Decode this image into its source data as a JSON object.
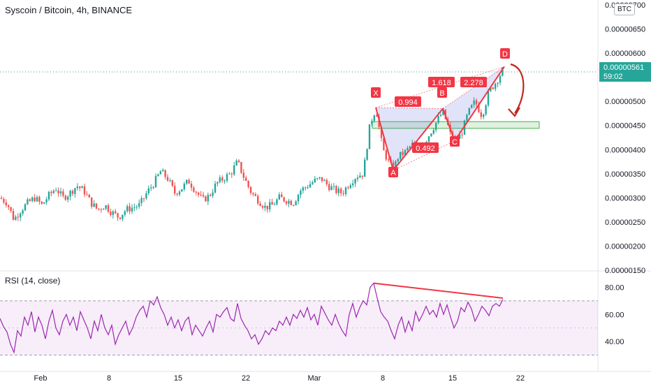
{
  "header": {
    "title": "Syscoin / Bitcoin, 4h, BINANCE",
    "currency_badge": "BTC"
  },
  "price_tag": {
    "value": "0.00000561",
    "countdown": "59:02",
    "color": "#26a69a"
  },
  "rsi_panel": {
    "title": "RSI (14, close)",
    "y_ticks": [
      "80.00",
      "60.00",
      "40.00"
    ],
    "upper_band": 70,
    "lower_band": 30,
    "line_color": "#9c27b0"
  },
  "x_axis_labels": [
    "Feb",
    "8",
    "15",
    "22",
    "Mar",
    "8",
    "15",
    "22"
  ],
  "pattern": {
    "points": [
      "X",
      "A",
      "B",
      "C",
      "D"
    ],
    "ratios": [
      "0.994",
      "0.492",
      "1.618",
      "2.278"
    ],
    "color": "#f23645"
  },
  "chart_data": {
    "type": "candlestick",
    "symbol": "Syscoin / Bitcoin",
    "interval": "4h",
    "exchange": "BINANCE",
    "y_ticks": [
      "0.00000700",
      "0.00000650",
      "0.00000600",
      "0.00000550",
      "0.00000500",
      "0.00000450",
      "0.00000400",
      "0.00000350",
      "0.00000300",
      "0.00000250",
      "0.00000200",
      "0.00000150"
    ],
    "last_price": 5.61e-06,
    "price_series_approx": [
      [
        0,
        3e-06
      ],
      [
        10,
        2.9e-06
      ],
      [
        20,
        2.55e-06
      ],
      [
        30,
        2.75e-06
      ],
      [
        40,
        2.9e-06
      ],
      [
        50,
        3e-06
      ],
      [
        60,
        2.85e-06
      ],
      [
        70,
        3.05e-06
      ],
      [
        80,
        3.2e-06
      ],
      [
        90,
        3e-06
      ],
      [
        100,
        3.1e-06
      ],
      [
        110,
        3.25e-06
      ],
      [
        120,
        3.15e-06
      ],
      [
        130,
        2.9e-06
      ],
      [
        140,
        2.75e-06
      ],
      [
        150,
        2.85e-06
      ],
      [
        160,
        2.7e-06
      ],
      [
        170,
        2.6e-06
      ],
      [
        180,
        2.75e-06
      ],
      [
        190,
        2.8e-06
      ],
      [
        200,
        2.85e-06
      ],
      [
        210,
        3.1e-06
      ],
      [
        220,
        3.3e-06
      ],
      [
        230,
        3.55e-06
      ],
      [
        240,
        3.4e-06
      ],
      [
        250,
        3.1e-06
      ],
      [
        260,
        3.2e-06
      ],
      [
        270,
        3.35e-06
      ],
      [
        280,
        3.15e-06
      ],
      [
        290,
        2.95e-06
      ],
      [
        300,
        3.05e-06
      ],
      [
        310,
        3.3e-06
      ],
      [
        320,
        3.4e-06
      ],
      [
        330,
        3.5e-06
      ],
      [
        340,
        3.75e-06
      ],
      [
        350,
        3.4e-06
      ],
      [
        360,
        3.1e-06
      ],
      [
        370,
        2.95e-06
      ],
      [
        380,
        2.8e-06
      ],
      [
        390,
        2.85e-06
      ],
      [
        400,
        3e-06
      ],
      [
        410,
        2.95e-06
      ],
      [
        420,
        2.9e-06
      ],
      [
        430,
        3.15e-06
      ],
      [
        440,
        3.25e-06
      ],
      [
        450,
        3.35e-06
      ],
      [
        460,
        3.4e-06
      ],
      [
        470,
        3.25e-06
      ],
      [
        480,
        3.15e-06
      ],
      [
        490,
        3.1e-06
      ],
      [
        500,
        3.3e-06
      ],
      [
        510,
        3.45e-06
      ],
      [
        520,
        3.5e-06
      ],
      [
        530,
        4.55e-06
      ],
      [
        538,
        4.85e-06
      ],
      [
        548,
        4e-06
      ],
      [
        558,
        3.7e-06
      ],
      [
        563,
        3.58e-06
      ],
      [
        570,
        3.85e-06
      ],
      [
        580,
        3.95e-06
      ],
      [
        590,
        4.1e-06
      ],
      [
        600,
        4e-06
      ],
      [
        610,
        4.2e-06
      ],
      [
        620,
        4.45e-06
      ],
      [
        630,
        4.7e-06
      ],
      [
        634,
        4.78e-06
      ],
      [
        640,
        4.55e-06
      ],
      [
        645,
        4.3e-06
      ],
      [
        650,
        4.18e-06
      ],
      [
        660,
        4.3e-06
      ],
      [
        670,
        4.75e-06
      ],
      [
        680,
        5e-06
      ],
      [
        690,
        4.7e-06
      ],
      [
        700,
        5.2e-06
      ],
      [
        710,
        5.4e-06
      ],
      [
        720,
        5.65e-06
      ],
      [
        722,
        5.61e-06
      ]
    ],
    "harmonic_pattern": {
      "X": 4.87e-06,
      "A": 3.57e-06,
      "B": 4.85e-06,
      "C": 4.18e-06,
      "D": 5.72e-06,
      "ratios": {
        "XB": 0.994,
        "AC": 0.492,
        "BD": 1.618,
        "XD": 2.278
      }
    },
    "target_zone": [
      4.44e-06,
      4.58e-06
    ],
    "rsi": {
      "period": 14,
      "source": "close",
      "bands": [
        30,
        70
      ],
      "values_approx": [
        [
          0,
          57
        ],
        [
          5,
          51
        ],
        [
          10,
          47
        ],
        [
          15,
          38
        ],
        [
          20,
          32
        ],
        [
          25,
          48
        ],
        [
          30,
          44
        ],
        [
          35,
          58
        ],
        [
          40,
          52
        ],
        [
          45,
          62
        ],
        [
          50,
          47
        ],
        [
          55,
          58
        ],
        [
          60,
          52
        ],
        [
          65,
          42
        ],
        [
          70,
          55
        ],
        [
          75,
          63
        ],
        [
          80,
          50
        ],
        [
          85,
          45
        ],
        [
          90,
          55
        ],
        [
          95,
          60
        ],
        [
          100,
          52
        ],
        [
          105,
          58
        ],
        [
          110,
          48
        ],
        [
          115,
          62
        ],
        [
          120,
          56
        ],
        [
          125,
          50
        ],
        [
          130,
          42
        ],
        [
          135,
          55
        ],
        [
          140,
          48
        ],
        [
          145,
          60
        ],
        [
          150,
          50
        ],
        [
          155,
          45
        ],
        [
          160,
          52
        ],
        [
          165,
          38
        ],
        [
          170,
          45
        ],
        [
          175,
          50
        ],
        [
          180,
          55
        ],
        [
          185,
          45
        ],
        [
          190,
          50
        ],
        [
          195,
          58
        ],
        [
          200,
          63
        ],
        [
          205,
          66
        ],
        [
          210,
          58
        ],
        [
          215,
          70
        ],
        [
          220,
          67
        ],
        [
          225,
          73
        ],
        [
          230,
          65
        ],
        [
          235,
          60
        ],
        [
          240,
          52
        ],
        [
          245,
          58
        ],
        [
          250,
          50
        ],
        [
          255,
          56
        ],
        [
          260,
          48
        ],
        [
          265,
          55
        ],
        [
          270,
          58
        ],
        [
          275,
          45
        ],
        [
          280,
          52
        ],
        [
          285,
          48
        ],
        [
          290,
          44
        ],
        [
          295,
          50
        ],
        [
          300,
          55
        ],
        [
          305,
          47
        ],
        [
          310,
          60
        ],
        [
          315,
          58
        ],
        [
          320,
          62
        ],
        [
          325,
          65
        ],
        [
          330,
          57
        ],
        [
          335,
          55
        ],
        [
          340,
          68
        ],
        [
          345,
          57
        ],
        [
          350,
          52
        ],
        [
          355,
          48
        ],
        [
          360,
          42
        ],
        [
          365,
          45
        ],
        [
          370,
          38
        ],
        [
          375,
          42
        ],
        [
          380,
          48
        ],
        [
          385,
          45
        ],
        [
          390,
          50
        ],
        [
          395,
          48
        ],
        [
          400,
          55
        ],
        [
          405,
          52
        ],
        [
          410,
          58
        ],
        [
          415,
          52
        ],
        [
          420,
          60
        ],
        [
          425,
          57
        ],
        [
          430,
          63
        ],
        [
          435,
          58
        ],
        [
          440,
          65
        ],
        [
          445,
          56
        ],
        [
          450,
          60
        ],
        [
          455,
          52
        ],
        [
          460,
          66
        ],
        [
          465,
          61
        ],
        [
          470,
          56
        ],
        [
          475,
          52
        ],
        [
          480,
          60
        ],
        [
          485,
          53
        ],
        [
          490,
          48
        ],
        [
          495,
          44
        ],
        [
          500,
          60
        ],
        [
          505,
          68
        ],
        [
          510,
          58
        ],
        [
          515,
          65
        ],
        [
          520,
          70
        ],
        [
          525,
          67
        ],
        [
          530,
          80
        ],
        [
          535,
          83
        ],
        [
          540,
          72
        ],
        [
          545,
          62
        ],
        [
          550,
          58
        ],
        [
          555,
          55
        ],
        [
          560,
          48
        ],
        [
          565,
          42
        ],
        [
          570,
          52
        ],
        [
          575,
          58
        ],
        [
          580,
          47
        ],
        [
          585,
          55
        ],
        [
          590,
          48
        ],
        [
          595,
          62
        ],
        [
          600,
          55
        ],
        [
          605,
          60
        ],
        [
          610,
          66
        ],
        [
          615,
          60
        ],
        [
          620,
          63
        ],
        [
          625,
          58
        ],
        [
          630,
          68
        ],
        [
          635,
          60
        ],
        [
          640,
          67
        ],
        [
          645,
          58
        ],
        [
          650,
          50
        ],
        [
          655,
          55
        ],
        [
          660,
          65
        ],
        [
          665,
          62
        ],
        [
          670,
          69
        ],
        [
          675,
          64
        ],
        [
          680,
          55
        ],
        [
          685,
          60
        ],
        [
          690,
          66
        ],
        [
          695,
          63
        ],
        [
          700,
          59
        ],
        [
          705,
          66
        ],
        [
          710,
          68
        ],
        [
          715,
          66
        ],
        [
          720,
          71
        ]
      ],
      "divergence_line": [
        [
          535,
          83
        ],
        [
          720,
          72
        ]
      ]
    }
  }
}
